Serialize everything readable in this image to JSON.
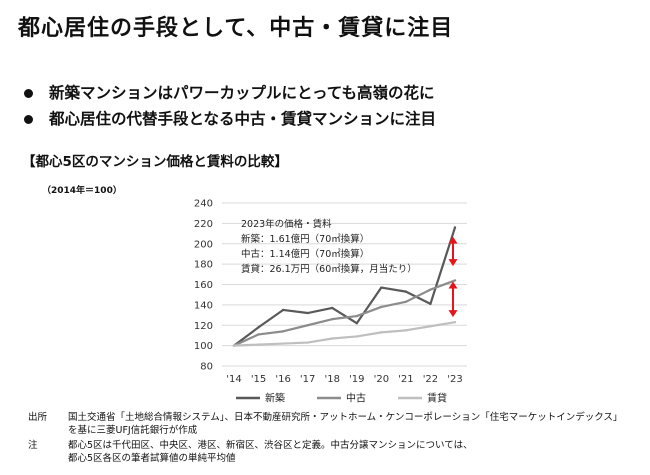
{
  "title": "都心居住の手段として、中古・賃貸に注目",
  "bullets": [
    "新築マンションはパワーカップルにとっても高嶺の花に",
    "都心居住の代替手段となる中古・賃貸マンションに注目"
  ],
  "section_title": "【都心5区のマンション価格と賃料の比較】",
  "chart_data": {
    "type": "line",
    "subtitle": "（2014年＝100）",
    "categories": [
      "'14",
      "'15",
      "'16",
      "'17",
      "'18",
      "'19",
      "'20",
      "'21",
      "'22",
      "'23"
    ],
    "ylim": [
      80,
      240
    ],
    "yticks": [
      80,
      100,
      120,
      140,
      160,
      180,
      200,
      220,
      240
    ],
    "grid": "horizontal",
    "legend_position": "bottom",
    "series": [
      {
        "name": "新築",
        "color": "#595959",
        "values": [
          100,
          118,
          135,
          132,
          137,
          122,
          157,
          153,
          141,
          216
        ]
      },
      {
        "name": "中古",
        "color": "#8c8c8c",
        "values": [
          100,
          111,
          114,
          120,
          126,
          129,
          138,
          143,
          155,
          164
        ]
      },
      {
        "name": "賃貸",
        "color": "#bfbfbf",
        "values": [
          100,
          101,
          102,
          103,
          107,
          109,
          113,
          115,
          119,
          123
        ]
      }
    ],
    "annotation": {
      "lines": [
        "2023年の価格・賃料",
        "新築：1.61億円（70㎡換算）",
        "中古：1.14億円（70㎡換算）",
        "賃貸：26.1万円（60㎡換算，月当たり）"
      ]
    },
    "arrows": [
      {
        "from": 207,
        "to": 178,
        "color": "#e8141b"
      },
      {
        "from": 163,
        "to": 128,
        "color": "#e8141b"
      }
    ]
  },
  "notes": [
    {
      "label": "出所",
      "lines": [
        "国土交通省「土地総合情報システム」、日本不動産研究所・アットホーム・ケンコーポレーション「住宅マーケットインデックス」",
        "を基に三菱UFJ信託銀行が作成"
      ]
    },
    {
      "label": "注",
      "lines": [
        "都心5区は千代田区、中央区、港区、新宿区、渋谷区と定義。中古分譲マンションについては、",
        "都心5区各区の筆者試算値の単純平均値"
      ]
    }
  ]
}
